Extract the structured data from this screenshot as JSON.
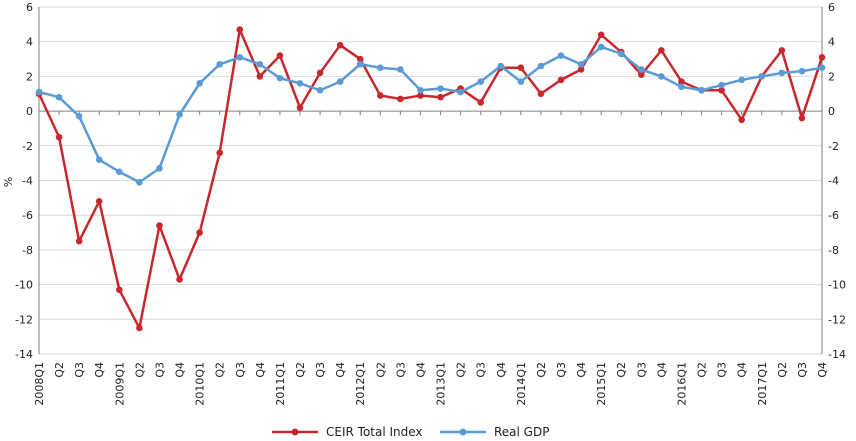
{
  "chart_data": {
    "type": "line",
    "ylabel": "%",
    "ylim": [
      -14,
      6
    ],
    "yticks": [
      6,
      4,
      2,
      0,
      -2,
      -4,
      -6,
      -8,
      -10,
      -12,
      -14
    ],
    "x_tick_labels": [
      "2008Q1",
      "Q2",
      "Q3",
      "Q4",
      "2009Q1",
      "Q2",
      "Q3",
      "Q4",
      "2010Q1",
      "Q2",
      "Q3",
      "Q4",
      "2011Q1",
      "Q2",
      "Q3",
      "Q4",
      "2012Q1",
      "Q2",
      "Q3",
      "Q4",
      "2013Q1",
      "Q2",
      "Q3",
      "Q4",
      "2014Q1",
      "Q2",
      "Q3",
      "Q4",
      "2015Q1",
      "Q2",
      "Q3",
      "Q4",
      "2016Q1",
      "Q2",
      "Q3",
      "Q4",
      "2017Q1",
      "Q2",
      "Q3",
      "Q4"
    ],
    "grid": "horizontal",
    "legend_position": "bottom",
    "series": [
      {
        "name": "CEIR Total Index",
        "color": "#c8282d",
        "values": [
          1.0,
          -1.5,
          -7.5,
          -5.2,
          -10.3,
          -12.5,
          -6.6,
          -9.7,
          -7.0,
          -2.4,
          4.7,
          2.0,
          3.2,
          0.2,
          2.2,
          3.8,
          3.0,
          0.9,
          0.7,
          0.9,
          0.8,
          1.3,
          0.5,
          2.5,
          2.5,
          1.0,
          1.8,
          2.4,
          4.4,
          3.4,
          2.1,
          3.5,
          1.7,
          1.2,
          1.2,
          -0.5,
          2.0,
          3.5,
          -0.4,
          3.1
        ]
      },
      {
        "name": "Real GDP",
        "color": "#5b9bd5",
        "values": [
          1.1,
          0.8,
          -0.3,
          -2.8,
          -3.5,
          -4.1,
          -3.3,
          -0.2,
          1.6,
          2.7,
          3.1,
          2.7,
          1.9,
          1.6,
          1.2,
          1.7,
          2.7,
          2.5,
          2.4,
          1.2,
          1.3,
          1.1,
          1.7,
          2.6,
          1.7,
          2.6,
          3.2,
          2.7,
          3.7,
          3.3,
          2.4,
          2.0,
          1.4,
          1.2,
          1.5,
          1.8,
          2.0,
          2.2,
          2.3,
          2.5
        ]
      }
    ]
  }
}
